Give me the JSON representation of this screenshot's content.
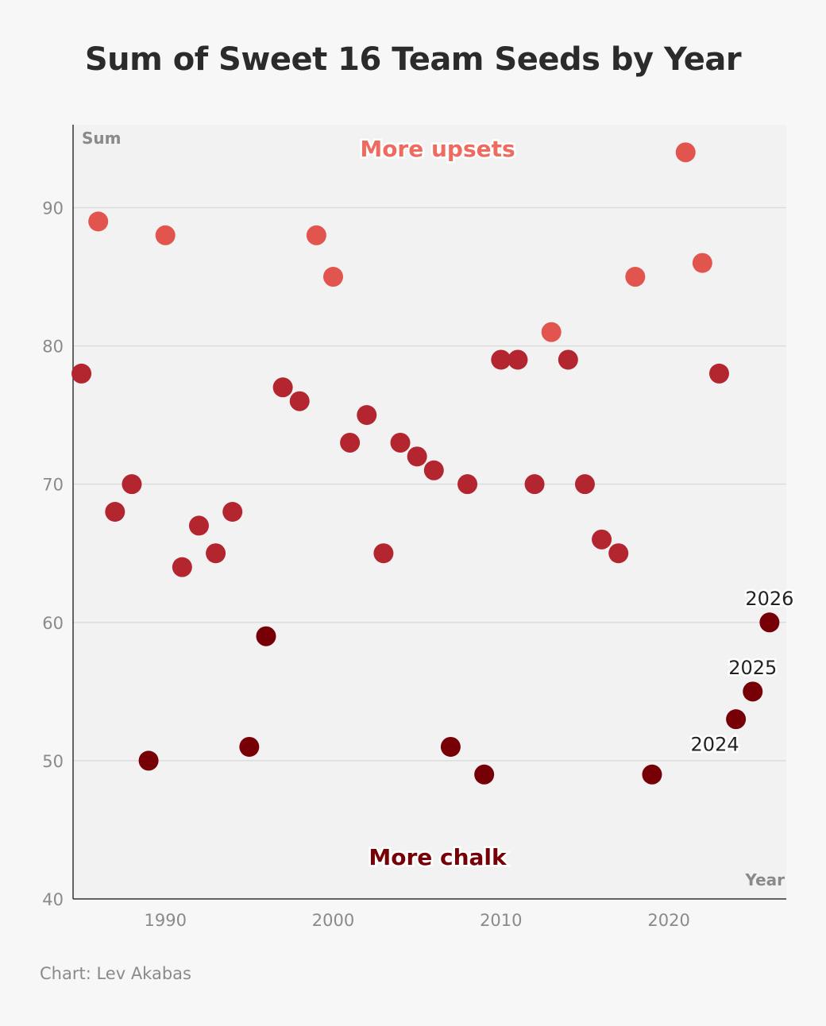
{
  "chart_data": {
    "type": "scatter",
    "title": "Sum of Sweet 16 Team Seeds by Year",
    "xlabel": "Year",
    "ylabel": "Sum",
    "xlim": [
      1984.5,
      2027
    ],
    "ylim": [
      40,
      96
    ],
    "xticks": [
      1990,
      2000,
      2010,
      2020
    ],
    "yticks": [
      40,
      50,
      60,
      70,
      80,
      90
    ],
    "grid": true,
    "upper_band_label": "More upsets",
    "lower_band_label": "More chalk",
    "band_split_value": 60,
    "colors": {
      "high": "#e2544e",
      "mid": "#b3252f",
      "low": "#760006",
      "upsets_text": "#ef6a5f",
      "chalk_text": "#760006"
    },
    "category_thresholds": {
      "high_min": 81,
      "low_max": 60
    },
    "points": [
      {
        "x": 1985,
        "y": 78
      },
      {
        "x": 1986,
        "y": 89
      },
      {
        "x": 1987,
        "y": 68
      },
      {
        "x": 1988,
        "y": 70
      },
      {
        "x": 1989,
        "y": 50
      },
      {
        "x": 1990,
        "y": 88
      },
      {
        "x": 1991,
        "y": 64
      },
      {
        "x": 1992,
        "y": 67
      },
      {
        "x": 1993,
        "y": 65
      },
      {
        "x": 1994,
        "y": 68
      },
      {
        "x": 1995,
        "y": 51
      },
      {
        "x": 1996,
        "y": 59
      },
      {
        "x": 1997,
        "y": 77
      },
      {
        "x": 1998,
        "y": 76
      },
      {
        "x": 1999,
        "y": 88
      },
      {
        "x": 2000,
        "y": 85
      },
      {
        "x": 2001,
        "y": 73
      },
      {
        "x": 2002,
        "y": 75
      },
      {
        "x": 2003,
        "y": 65
      },
      {
        "x": 2004,
        "y": 73
      },
      {
        "x": 2005,
        "y": 72
      },
      {
        "x": 2006,
        "y": 71
      },
      {
        "x": 2007,
        "y": 51
      },
      {
        "x": 2008,
        "y": 70
      },
      {
        "x": 2009,
        "y": 49
      },
      {
        "x": 2010,
        "y": 79
      },
      {
        "x": 2011,
        "y": 79
      },
      {
        "x": 2012,
        "y": 70
      },
      {
        "x": 2013,
        "y": 81
      },
      {
        "x": 2014,
        "y": 79
      },
      {
        "x": 2015,
        "y": 70
      },
      {
        "x": 2016,
        "y": 66
      },
      {
        "x": 2017,
        "y": 65
      },
      {
        "x": 2018,
        "y": 85
      },
      {
        "x": 2019,
        "y": 49
      },
      {
        "x": 2021,
        "y": 94
      },
      {
        "x": 2022,
        "y": 86
      },
      {
        "x": 2023,
        "y": 78
      },
      {
        "x": 2024,
        "y": 53,
        "label": "2024",
        "label_pos": "below-left"
      },
      {
        "x": 2025,
        "y": 55,
        "label": "2025",
        "label_pos": "above"
      },
      {
        "x": 2026,
        "y": 60,
        "label": "2026",
        "label_pos": "above"
      }
    ]
  },
  "credit": "Chart: Lev Akabas"
}
